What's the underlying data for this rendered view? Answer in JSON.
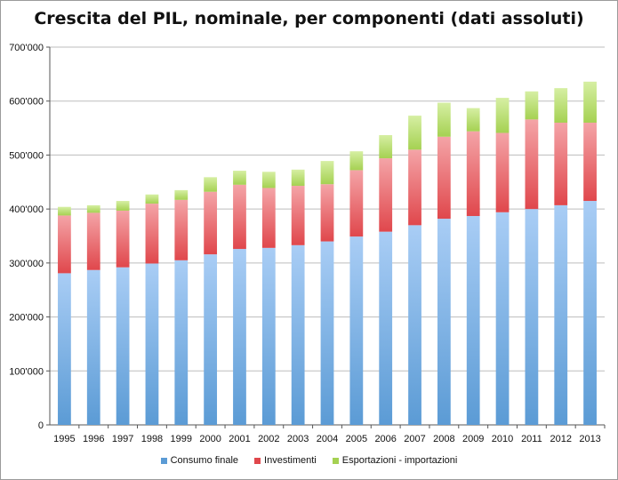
{
  "chart_data": {
    "type": "bar",
    "stacked": true,
    "title": "Crescita del PIL, nominale, per componenti (dati assoluti)",
    "xlabel": "",
    "ylabel": "",
    "categories": [
      "1995",
      "1996",
      "1997",
      "1998",
      "1999",
      "2000",
      "2001",
      "2002",
      "2003",
      "2004",
      "2005",
      "2006",
      "2007",
      "2008",
      "2009",
      "2010",
      "2011",
      "2012",
      "2013"
    ],
    "ylim": [
      0,
      700000
    ],
    "yticks": [
      0,
      100000,
      200000,
      300000,
      400000,
      500000,
      600000,
      700000
    ],
    "ytick_labels": [
      "0",
      "100'000",
      "200'000",
      "300'000",
      "400'000",
      "500'000",
      "600'000",
      "700'000"
    ],
    "grid": true,
    "legend_position": "bottom",
    "series": [
      {
        "name": "Consumo finale",
        "color": "#5b9bd5",
        "values": [
          281000,
          287000,
          292000,
          299000,
          305000,
          316000,
          326000,
          328000,
          333000,
          340000,
          349000,
          358000,
          370000,
          382000,
          387000,
          394000,
          400000,
          407000,
          415000
        ]
      },
      {
        "name": "Investimenti",
        "color": "#e0474c",
        "values": [
          107000,
          106000,
          105000,
          111000,
          112000,
          116000,
          119000,
          111000,
          110000,
          106000,
          123000,
          136000,
          140000,
          152000,
          157000,
          147000,
          166000,
          153000,
          145000
        ]
      },
      {
        "name": "Esportazioni - importazioni",
        "color": "#a5d152",
        "values": [
          16000,
          14000,
          18000,
          17000,
          18000,
          27000,
          26000,
          30000,
          30000,
          43000,
          35000,
          43000,
          63000,
          63000,
          43000,
          65000,
          52000,
          64000,
          76000
        ]
      }
    ]
  }
}
